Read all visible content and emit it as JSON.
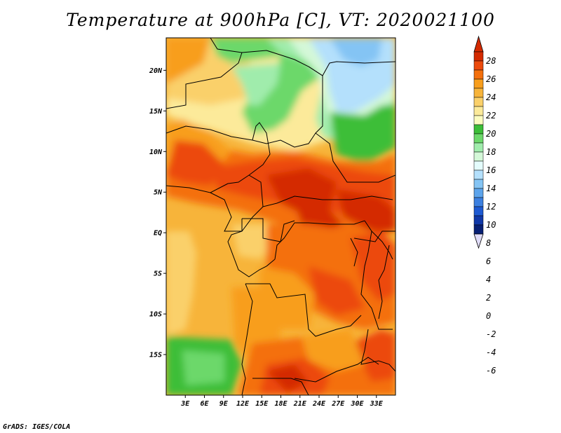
{
  "title": "Temperature at 900hPa [C], VT: 2020021100",
  "credit": "GrADS: IGES/COLA",
  "map": {
    "lon_range": [
      0,
      36
    ],
    "lat_range": [
      -20,
      24
    ],
    "lat_ticks": [
      {
        "value": 20,
        "label": "20N"
      },
      {
        "value": 15,
        "label": "15N"
      },
      {
        "value": 10,
        "label": "10N"
      },
      {
        "value": 5,
        "label": "5N"
      },
      {
        "value": 0,
        "label": "EQ"
      },
      {
        "value": -5,
        "label": "5S"
      },
      {
        "value": -10,
        "label": "10S"
      },
      {
        "value": -15,
        "label": "15S"
      }
    ],
    "lon_ticks": [
      {
        "value": 3,
        "label": "3E"
      },
      {
        "value": 6,
        "label": "6E"
      },
      {
        "value": 9,
        "label": "9E"
      },
      {
        "value": 12,
        "label": "12E"
      },
      {
        "value": 15,
        "label": "15E"
      },
      {
        "value": 18,
        "label": "18E"
      },
      {
        "value": 21,
        "label": "21E"
      },
      {
        "value": 24,
        "label": "24E"
      },
      {
        "value": 27,
        "label": "27E"
      },
      {
        "value": 30,
        "label": "30E"
      },
      {
        "value": 33,
        "label": "33E"
      }
    ]
  },
  "colorbar": {
    "labels": [
      "28",
      "26",
      "24",
      "22",
      "20",
      "18",
      "16",
      "14",
      "12",
      "10",
      "8",
      "6",
      "4",
      "2",
      "0",
      "-2",
      "-4",
      "-6"
    ],
    "colors_top_to_bottom": [
      "#d42a00",
      "#ec4a0c",
      "#f4700c",
      "#f89e1c",
      "#f7b43a",
      "#fad06a",
      "#fcea9a",
      "#fcfcc0",
      "#3cbe38",
      "#6cd86a",
      "#a0ecac",
      "#d4f8d8",
      "#e4fcfc",
      "#b4e0fc",
      "#84c4f4",
      "#5ca4ec",
      "#3c80e0",
      "#1e5ad2",
      "#1038a8",
      "#082074"
    ],
    "under_color": "#e0dcf8",
    "over_color": "#d42a00"
  }
}
